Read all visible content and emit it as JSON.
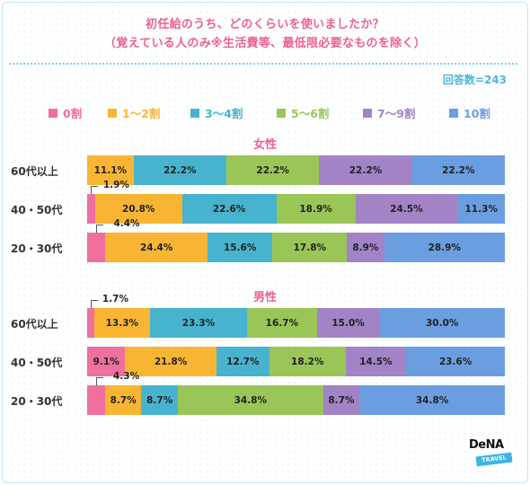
{
  "title_line1": "初任給のうち、どのくらいを使いましたか？",
  "title_line2": "（覚えている人のみ※生活費等、最低限必要なものを除く）",
  "respondents": "回答数=243",
  "logo_text": "DeNA",
  "logo_sub": "TRAVEL",
  "chart_data": {
    "type": "bar",
    "orientation": "horizontal-stacked-100",
    "legend": [
      "0割",
      "1〜2割",
      "3〜4割",
      "5〜6割",
      "7〜9割",
      "10割"
    ],
    "colors": [
      "#ef6f9e",
      "#f8b533",
      "#47b3cf",
      "#9ac557",
      "#a283c6",
      "#6b9ee0"
    ],
    "groups": [
      {
        "name": "女性",
        "rows": [
          {
            "label": "60代以上",
            "values": [
              0,
              11.1,
              22.2,
              22.2,
              22.2,
              22.2
            ]
          },
          {
            "label": "40・50代",
            "values": [
              1.9,
              20.8,
              22.6,
              18.9,
              24.5,
              11.3
            ]
          },
          {
            "label": "20・30代",
            "values": [
              4.4,
              24.4,
              15.6,
              17.8,
              8.9,
              28.9
            ]
          }
        ]
      },
      {
        "name": "男性",
        "rows": [
          {
            "label": "60代以上",
            "values": [
              1.7,
              13.3,
              23.3,
              16.7,
              15.0,
              30.0
            ]
          },
          {
            "label": "40・50代",
            "values": [
              9.1,
              21.8,
              12.7,
              18.2,
              14.5,
              23.6
            ]
          },
          {
            "label": "20・30代",
            "values": [
              4.3,
              8.7,
              8.7,
              34.8,
              8.7,
              34.8
            ]
          }
        ]
      }
    ]
  }
}
